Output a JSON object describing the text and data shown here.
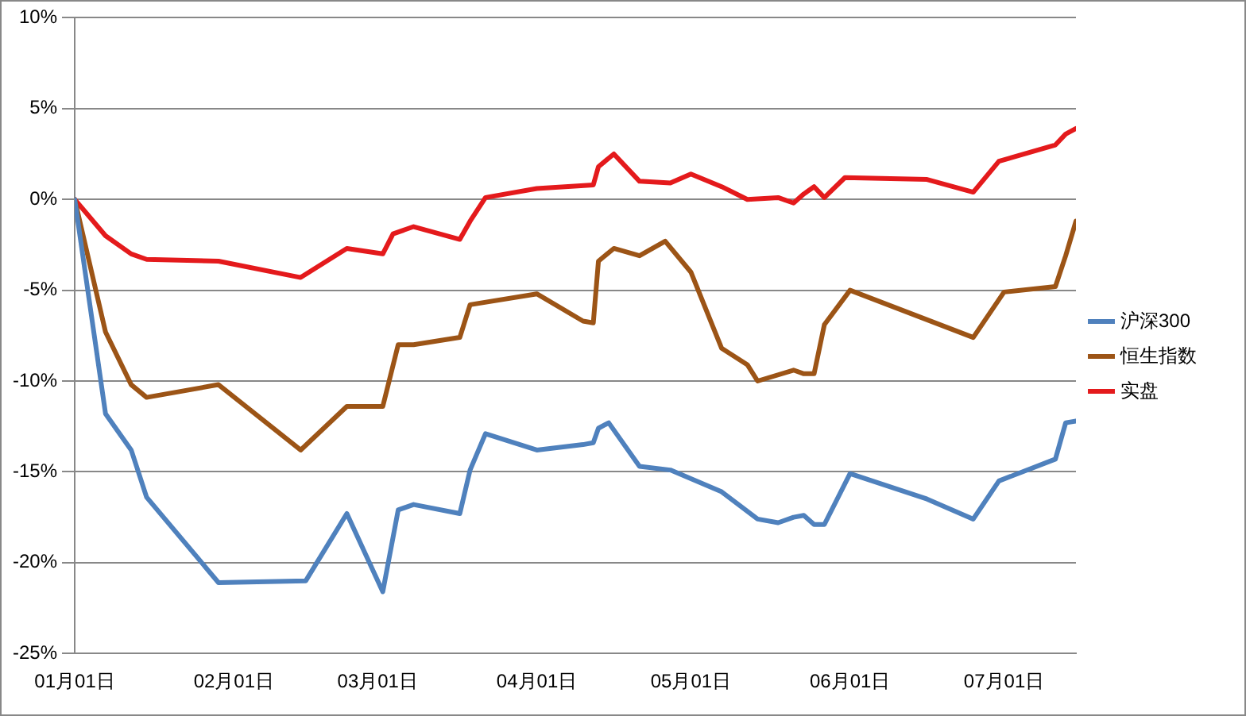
{
  "chart_data": {
    "type": "line",
    "xlim": [
      "--01-01",
      "--07-15"
    ],
    "xticks": [
      {
        "value": "--01-01",
        "label": "01月01日"
      },
      {
        "value": "--02-01",
        "label": "02月01日"
      },
      {
        "value": "--03-01",
        "label": "03月01日"
      },
      {
        "value": "--04-01",
        "label": "04月01日"
      },
      {
        "value": "--05-01",
        "label": "05月01日"
      },
      {
        "value": "--06-01",
        "label": "06月01日"
      },
      {
        "value": "--07-01",
        "label": "07月01日"
      }
    ],
    "ylim": [
      -25,
      10
    ],
    "yticks": [
      {
        "value": -25,
        "label": "-25%"
      },
      {
        "value": -20,
        "label": "-20%"
      },
      {
        "value": -15,
        "label": "-15%"
      },
      {
        "value": -10,
        "label": "-10%"
      },
      {
        "value": -5,
        "label": "-5%"
      },
      {
        "value": 0,
        "label": "0%"
      },
      {
        "value": 5,
        "label": "5%"
      },
      {
        "value": 10,
        "label": "10%"
      }
    ],
    "grid": "y",
    "legend": "right",
    "marker": "none",
    "line_style": "solid",
    "series": [
      {
        "name": "沪深300",
        "color": "#4f81bd",
        "x": [
          "--01-01",
          "--01-07",
          "--01-12",
          "--01-15",
          "--01-29",
          "--02-15",
          "--02-23",
          "--03-02",
          "--03-05",
          "--03-08",
          "--03-17",
          "--03-19",
          "--03-22",
          "--04-01",
          "--04-10",
          "--04-12",
          "--04-13",
          "--04-15",
          "--04-21",
          "--04-27",
          "--05-07",
          "--05-14",
          "--05-18",
          "--05-21",
          "--05-23",
          "--05-25",
          "--05-27",
          "--06-01",
          "--06-16",
          "--06-25",
          "--06-30",
          "--07-11",
          "--07-13",
          "--07-15"
        ],
        "values": [
          0,
          -11.8,
          -13.8,
          -16.4,
          -21.1,
          -21.0,
          -17.3,
          -21.6,
          -17.1,
          -16.8,
          -17.3,
          -14.9,
          -12.9,
          -13.8,
          -13.5,
          -13.4,
          -12.6,
          -12.3,
          -14.7,
          -14.9,
          -16.1,
          -17.6,
          -17.8,
          -17.5,
          -17.4,
          -17.9,
          -17.9,
          -15.1,
          -16.5,
          -17.6,
          -15.5,
          -14.3,
          -12.3,
          -12.2
        ]
      },
      {
        "name": "恒生指数",
        "color": "#9c5416",
        "x": [
          "--01-01",
          "--01-07",
          "--01-12",
          "--01-15",
          "--01-29",
          "--02-14",
          "--02-23",
          "--03-02",
          "--03-05",
          "--03-08",
          "--03-17",
          "--03-19",
          "--04-01",
          "--04-10",
          "--04-12",
          "--04-13",
          "--04-16",
          "--04-21",
          "--04-26",
          "--05-01",
          "--05-07",
          "--05-12",
          "--05-14",
          "--05-21",
          "--05-23",
          "--05-25",
          "--05-27",
          "--06-01",
          "--06-25",
          "--07-01",
          "--07-11",
          "--07-13",
          "--07-15"
        ],
        "values": [
          0,
          -7.3,
          -10.2,
          -10.9,
          -10.2,
          -13.8,
          -11.4,
          -11.4,
          -8.0,
          -8.0,
          -7.6,
          -5.8,
          -5.2,
          -6.7,
          -6.8,
          -3.4,
          -2.7,
          -3.1,
          -2.3,
          -4.0,
          -8.2,
          -9.1,
          -10.0,
          -9.4,
          -9.6,
          -9.6,
          -6.9,
          -5.0,
          -7.6,
          -5.1,
          -4.8,
          -3.1,
          -1.2
        ]
      },
      {
        "name": "实盘",
        "color": "#e41a1c",
        "x": [
          "--01-01",
          "--01-07",
          "--01-12",
          "--01-15",
          "--01-29",
          "--02-14",
          "--02-23",
          "--03-02",
          "--03-04",
          "--03-08",
          "--03-17",
          "--03-19",
          "--03-22",
          "--04-01",
          "--04-12",
          "--04-13",
          "--04-16",
          "--04-21",
          "--04-27",
          "--05-01",
          "--05-07",
          "--05-12",
          "--05-18",
          "--05-21",
          "--05-23",
          "--05-25",
          "--05-27",
          "--05-31",
          "--06-16",
          "--06-25",
          "--06-30",
          "--07-11",
          "--07-13",
          "--07-15"
        ],
        "values": [
          0,
          -2.0,
          -3.0,
          -3.3,
          -3.4,
          -4.3,
          -2.7,
          -3.0,
          -1.9,
          -1.5,
          -2.2,
          -1.2,
          0.1,
          0.6,
          0.8,
          1.8,
          2.5,
          1.0,
          0.9,
          1.4,
          0.7,
          0,
          0.1,
          -0.2,
          0.3,
          0.7,
          0.1,
          1.2,
          1.1,
          0.4,
          2.1,
          3.0,
          3.6,
          3.9
        ]
      }
    ]
  }
}
